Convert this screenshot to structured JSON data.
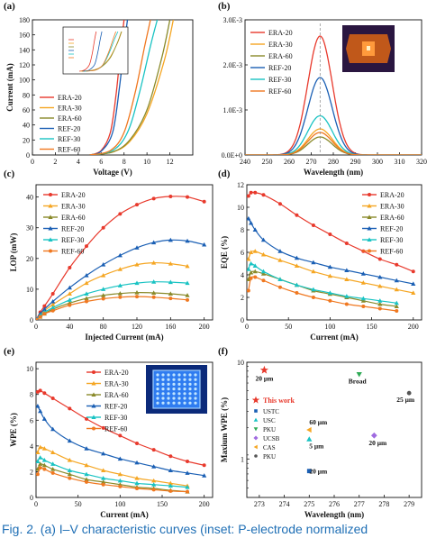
{
  "caption": "Fig. 2.   (a) I–V characteristic curves (inset: P-electrode normalized",
  "legend_f": {
    "this_work": "This work",
    "groups": [
      "USTC",
      "USC",
      "PKU",
      "UCSB",
      "CAS",
      "PKU"
    ]
  },
  "chart_data": [
    {
      "panel": "(a)",
      "type": "line",
      "xlabel": "Voltage (V)",
      "ylabel": "Current (mA)",
      "xlim": [
        0,
        14
      ],
      "ylim": [
        0,
        180
      ],
      "xticks": [
        0,
        2,
        4,
        6,
        8,
        10,
        12
      ],
      "yticks": [
        0,
        20,
        40,
        60,
        80,
        100,
        120,
        140,
        160,
        180
      ],
      "legend_position": "middle-left",
      "series": [
        {
          "name": "ERA-20",
          "color": "#e8392c",
          "x": [
            5.0,
            6.0,
            6.8,
            7.3,
            7.7,
            8.0
          ],
          "y": [
            0,
            6,
            30,
            80,
            140,
            180
          ]
        },
        {
          "name": "ERA-30",
          "color": "#f5a623",
          "x": [
            5.0,
            7.0,
            8.5,
            10.0,
            11.5,
            12.3
          ],
          "y": [
            0,
            4,
            18,
            55,
            125,
            180
          ]
        },
        {
          "name": "ERA-60",
          "color": "#8a8a2a",
          "x": [
            5.0,
            7.0,
            8.5,
            10.0,
            11.3,
            12.0
          ],
          "y": [
            0,
            4,
            20,
            60,
            130,
            180
          ]
        },
        {
          "name": "REF-20",
          "color": "#1a5fb4",
          "x": [
            5.0,
            6.0,
            7.0,
            7.6,
            8.0,
            8.3
          ],
          "y": [
            0,
            5,
            30,
            90,
            145,
            180
          ]
        },
        {
          "name": "REF-30",
          "color": "#19c3c3",
          "x": [
            5.0,
            7.0,
            8.3,
            9.3,
            10.3,
            10.9
          ],
          "y": [
            0,
            6,
            30,
            80,
            145,
            180
          ]
        },
        {
          "name": "REF-60",
          "color": "#f07820",
          "x": [
            5.0,
            6.8,
            8.0,
            9.0,
            9.8,
            10.3
          ],
          "y": [
            0,
            6,
            30,
            85,
            145,
            180
          ]
        }
      ]
    },
    {
      "panel": "(b)",
      "type": "line",
      "xlabel": "Wavelength (nm)",
      "ylabel": "",
      "xlim": [
        240,
        320
      ],
      "ylim": [
        0,
        0.003
      ],
      "xticks": [
        240,
        250,
        260,
        270,
        280,
        290,
        300,
        310,
        320
      ],
      "yticks": [
        0,
        0.001,
        0.002,
        0.003
      ],
      "ytick_labels": [
        "0.0E+0",
        "1.0E-3",
        "2.0E-3",
        "3.0E-3"
      ],
      "legend_position": "top-left",
      "center": 274,
      "width": 5.5,
      "series": [
        {
          "name": "ERA-20",
          "color": "#e8392c",
          "peak": 0.00264
        },
        {
          "name": "ERA-30",
          "color": "#f5a623",
          "peak": 0.00058
        },
        {
          "name": "ERA-60",
          "color": "#8a8a2a",
          "peak": 0.0004
        },
        {
          "name": "REF-20",
          "color": "#1a5fb4",
          "peak": 0.00172
        },
        {
          "name": "REF-30",
          "color": "#19c3c3",
          "peak": 0.00087
        },
        {
          "name": "REF-60",
          "color": "#f07820",
          "peak": 0.0005
        }
      ]
    },
    {
      "panel": "(c)",
      "type": "line",
      "xlabel": "Injected Current (mA)",
      "ylabel": "LOP (mW)",
      "xlim": [
        0,
        210
      ],
      "ylim": [
        0,
        44
      ],
      "xticks": [
        0,
        40,
        80,
        120,
        160,
        200
      ],
      "yticks": [
        0,
        10,
        20,
        30,
        40
      ],
      "legend_position": "top-left",
      "series": [
        {
          "name": "ERA-20",
          "color": "#e8392c",
          "marker": "circle",
          "x": [
            0,
            5,
            10,
            20,
            40,
            60,
            80,
            100,
            120,
            140,
            160,
            180,
            200
          ],
          "y": [
            0,
            2.5,
            4.5,
            8.5,
            17,
            24,
            30,
            34.5,
            37.5,
            39.5,
            40.2,
            40,
            38.5
          ]
        },
        {
          "name": "ERA-30",
          "color": "#f5a623",
          "marker": "triangle",
          "x": [
            0,
            5,
            10,
            20,
            40,
            60,
            80,
            100,
            120,
            140,
            160,
            180
          ],
          "y": [
            0,
            1.5,
            3,
            5,
            8.5,
            12,
            14.5,
            16.5,
            18,
            18.6,
            18.3,
            17.5
          ]
        },
        {
          "name": "ERA-60",
          "color": "#8a8a2a",
          "marker": "triangle",
          "x": [
            0,
            5,
            10,
            20,
            40,
            60,
            80,
            100,
            120,
            140,
            160,
            180
          ],
          "y": [
            0,
            1,
            2,
            3.5,
            5.5,
            7,
            8,
            8.6,
            8.9,
            8.8,
            8.5,
            8
          ]
        },
        {
          "name": "REF-20",
          "color": "#1a5fb4",
          "marker": "triangle",
          "x": [
            0,
            5,
            10,
            20,
            40,
            60,
            80,
            100,
            120,
            140,
            160,
            180,
            200
          ],
          "y": [
            0,
            2,
            3.5,
            6,
            10.5,
            14.5,
            18,
            21,
            23.5,
            25.2,
            26,
            25.7,
            24.5
          ]
        },
        {
          "name": "REF-30",
          "color": "#19c3c3",
          "marker": "triangle",
          "x": [
            0,
            5,
            10,
            20,
            40,
            60,
            80,
            100,
            120,
            140,
            160,
            180
          ],
          "y": [
            0,
            1.5,
            2.5,
            4,
            6.5,
            8.5,
            10,
            11.2,
            12,
            12.4,
            12.3,
            12
          ]
        },
        {
          "name": "REF-60",
          "color": "#f07820",
          "marker": "circle",
          "x": [
            0,
            5,
            10,
            20,
            40,
            60,
            80,
            100,
            120,
            140,
            160,
            180
          ],
          "y": [
            0,
            1,
            2,
            3,
            4.8,
            6,
            6.9,
            7.4,
            7.6,
            7.4,
            7,
            6.5
          ]
        }
      ]
    },
    {
      "panel": "(d)",
      "type": "line",
      "xlabel": "Current (mA)",
      "ylabel": "EQE (%)",
      "xlim": [
        0,
        210
      ],
      "ylim": [
        0,
        12
      ],
      "xticks": [
        0,
        50,
        100,
        150,
        200
      ],
      "yticks": [
        0,
        2,
        4,
        6,
        8,
        10,
        12
      ],
      "legend_position": "top-right",
      "series": [
        {
          "name": "ERA-20",
          "color": "#e8392c",
          "marker": "circle",
          "x": [
            2,
            5,
            10,
            20,
            40,
            60,
            80,
            100,
            120,
            140,
            160,
            180,
            200
          ],
          "y": [
            11,
            11.3,
            11.3,
            11.1,
            10.3,
            9.3,
            8.4,
            7.6,
            6.8,
            6.1,
            5.4,
            4.9,
            4.3
          ]
        },
        {
          "name": "ERA-30",
          "color": "#f5a623",
          "marker": "triangle",
          "x": [
            2,
            5,
            10,
            20,
            40,
            60,
            80,
            100,
            120,
            140,
            160,
            180,
            200
          ],
          "y": [
            5.4,
            6,
            6.1,
            5.8,
            5.3,
            4.8,
            4.3,
            3.9,
            3.6,
            3.3,
            3.0,
            2.7,
            2.4
          ]
        },
        {
          "name": "ERA-60",
          "color": "#8a8a2a",
          "marker": "triangle",
          "x": [
            2,
            5,
            10,
            20,
            40,
            60,
            80,
            100,
            120,
            140,
            160,
            180
          ],
          "y": [
            3.6,
            4.2,
            4.3,
            4.1,
            3.6,
            3.1,
            2.6,
            2.3,
            2.0,
            1.7,
            1.4,
            1.2
          ]
        },
        {
          "name": "REF-20",
          "color": "#1a5fb4",
          "marker": "triangle",
          "x": [
            2,
            5,
            10,
            20,
            40,
            60,
            80,
            100,
            120,
            140,
            160,
            180,
            200
          ],
          "y": [
            9,
            8.6,
            8,
            7.1,
            6.1,
            5.5,
            5.1,
            4.7,
            4.4,
            4.1,
            3.8,
            3.5,
            3.2
          ]
        },
        {
          "name": "REF-30",
          "color": "#19c3c3",
          "marker": "triangle",
          "x": [
            2,
            5,
            10,
            20,
            40,
            60,
            80,
            100,
            120,
            140,
            160,
            180
          ],
          "y": [
            4.5,
            5,
            4.8,
            4.3,
            3.6,
            3.1,
            2.7,
            2.4,
            2.1,
            1.9,
            1.7,
            1.5
          ]
        },
        {
          "name": "REF-60",
          "color": "#f07820",
          "marker": "circle",
          "x": [
            2,
            5,
            10,
            20,
            40,
            60,
            80,
            100,
            120,
            140,
            160,
            180
          ],
          "y": [
            2.6,
            3.7,
            3.8,
            3.5,
            2.9,
            2.4,
            2.0,
            1.7,
            1.4,
            1.2,
            1.0,
            0.8
          ]
        }
      ]
    },
    {
      "panel": "(e)",
      "type": "line",
      "xlabel": "Current (mA)",
      "ylabel": "WPE (%)",
      "xlim": [
        0,
        210
      ],
      "ylim": [
        0,
        10.5
      ],
      "xticks": [
        0,
        50,
        100,
        150,
        200
      ],
      "yticks": [
        0,
        2,
        4,
        6,
        8,
        10
      ],
      "legend_position": "top-center",
      "series": [
        {
          "name": "ERA-20",
          "color": "#e8392c",
          "marker": "circle",
          "x": [
            2,
            5,
            10,
            20,
            40,
            60,
            80,
            100,
            120,
            140,
            160,
            180,
            200
          ],
          "y": [
            8.2,
            8.3,
            8.1,
            7.7,
            6.9,
            6.1,
            5.4,
            4.8,
            4.2,
            3.7,
            3.2,
            2.8,
            2.5
          ]
        },
        {
          "name": "ERA-30",
          "color": "#f5a623",
          "marker": "triangle",
          "x": [
            2,
            5,
            10,
            20,
            40,
            60,
            80,
            100,
            120,
            140,
            160,
            180
          ],
          "y": [
            3.5,
            3.9,
            3.8,
            3.5,
            2.9,
            2.5,
            2.1,
            1.8,
            1.5,
            1.3,
            1.1,
            0.9
          ]
        },
        {
          "name": "ERA-60",
          "color": "#8a8a2a",
          "marker": "triangle",
          "x": [
            2,
            5,
            10,
            20,
            40,
            60,
            80,
            100,
            120,
            140,
            160,
            180
          ],
          "y": [
            2.2,
            2.6,
            2.5,
            2.2,
            1.8,
            1.4,
            1.2,
            1.0,
            0.8,
            0.7,
            0.55,
            0.45
          ]
        },
        {
          "name": "REF-20",
          "color": "#1a5fb4",
          "marker": "triangle",
          "x": [
            2,
            5,
            10,
            20,
            40,
            60,
            80,
            100,
            120,
            140,
            160,
            180,
            200
          ],
          "y": [
            7.1,
            6.7,
            6.1,
            5.3,
            4.4,
            3.8,
            3.4,
            3.0,
            2.7,
            2.4,
            2.1,
            1.9,
            1.7
          ]
        },
        {
          "name": "REF-30",
          "color": "#19c3c3",
          "marker": "triangle",
          "x": [
            2,
            5,
            10,
            20,
            40,
            60,
            80,
            100,
            120,
            140,
            160,
            180
          ],
          "y": [
            2.8,
            3.1,
            2.9,
            2.6,
            2.1,
            1.8,
            1.5,
            1.3,
            1.1,
            1.0,
            0.9,
            0.8
          ]
        },
        {
          "name": "REF-60",
          "color": "#f07820",
          "marker": "circle",
          "x": [
            2,
            5,
            10,
            20,
            40,
            60,
            80,
            100,
            120,
            140,
            160,
            180
          ],
          "y": [
            1.8,
            2.3,
            2.2,
            1.9,
            1.5,
            1.2,
            1.0,
            0.85,
            0.7,
            0.6,
            0.5,
            0.45
          ]
        }
      ]
    },
    {
      "panel": "(f)",
      "type": "scatter",
      "xlabel": "Wavelength (nm)",
      "ylabel": "Maxium WPE (%)",
      "xlim": [
        272.5,
        279.5
      ],
      "ylim": [
        0.4,
        10
      ],
      "log_y": true,
      "xticks": [
        273,
        274,
        275,
        276,
        277,
        278,
        279
      ],
      "yticks": [
        1,
        10
      ],
      "legend_position": "middle-left",
      "points": [
        {
          "x": 273.2,
          "y": 8.3,
          "label": "20 μm",
          "color": "#e8392c",
          "marker": "star"
        },
        {
          "x": 277.0,
          "y": 7.5,
          "label": "Broad",
          "color": "#2eaa55",
          "marker": "triangle-down"
        },
        {
          "x": 279.0,
          "y": 4.8,
          "label": "25 μm",
          "color": "#555555",
          "marker": "circle"
        },
        {
          "x": 275.0,
          "y": 2.0,
          "label": "60 μm",
          "color": "#f5a623",
          "marker": "triangle-left"
        },
        {
          "x": 275.0,
          "y": 1.6,
          "label": "5 μm",
          "color": "#19c3c3",
          "marker": "triangle-up"
        },
        {
          "x": 277.6,
          "y": 1.75,
          "label": "20 μm",
          "color": "#a06be0",
          "marker": "diamond"
        },
        {
          "x": 275.0,
          "y": 0.75,
          "label": "20 μm",
          "color": "#1a5fb4",
          "marker": "square"
        }
      ]
    }
  ]
}
